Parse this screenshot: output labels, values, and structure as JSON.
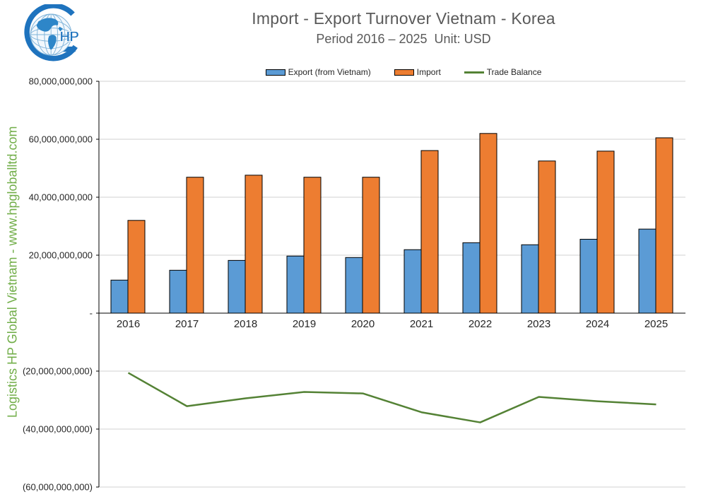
{
  "logo": {
    "monogram": "HP"
  },
  "header": {
    "title": "Import - Export Turnover Vietnam - Korea",
    "subtitle": "Period 2016 – 2025  Unit: USD"
  },
  "watermark": "Logistics HP Global Vietnam - www.hpgloballtd.com",
  "legend": {
    "items": [
      {
        "label": "Export (from Vietnam)",
        "type": "bar",
        "color": "#5B9BD5"
      },
      {
        "label": "Import",
        "type": "bar",
        "color": "#ED7D31"
      },
      {
        "label": "Trade Balance",
        "type": "line",
        "color": "#548235"
      }
    ]
  },
  "chart_data": {
    "type": "bar",
    "title": "Import - Export Turnover Vietnam - Korea",
    "subtitle": "Period 2016 – 2025  Unit: USD",
    "categories": [
      "2016",
      "2017",
      "2018",
      "2019",
      "2020",
      "2021",
      "2022",
      "2023",
      "2024",
      "2025"
    ],
    "series": [
      {
        "name": "Export (from Vietnam)",
        "type": "bar",
        "color": "#5B9BD5",
        "values": [
          11400000000,
          14800000000,
          18200000000,
          19700000000,
          19200000000,
          21900000000,
          24300000000,
          23600000000,
          25500000000,
          29000000000
        ]
      },
      {
        "name": "Import",
        "type": "bar",
        "color": "#ED7D31",
        "values": [
          32000000000,
          46900000000,
          47600000000,
          46900000000,
          46900000000,
          56100000000,
          62000000000,
          52500000000,
          55900000000,
          60500000000
        ]
      },
      {
        "name": "Trade Balance",
        "type": "line",
        "color": "#548235",
        "values": [
          -20600000000,
          -32100000000,
          -29400000000,
          -27200000000,
          -27700000000,
          -34200000000,
          -37700000000,
          -28900000000,
          -30400000000,
          -31500000000
        ]
      }
    ],
    "ylim": [
      -60000000000,
      80000000000
    ],
    "ytick_step": 20000000000,
    "ytick_labels": [
      "80,000,000,000",
      "60,000,000,000",
      "40,000,000,000",
      "20,000,000,000",
      "-",
      "(20,000,000,000)",
      "(40,000,000,000)",
      "(60,000,000,000)"
    ],
    "grid": true,
    "legend_position": "top",
    "colors": {
      "gridline": "#D2D2D2",
      "axis_line": "#000000",
      "bar_border": "#000000",
      "axis_text": "#262626",
      "title_text": "#595959",
      "watermark_green": "#70AD47",
      "logo_blue": "#1E73BE"
    }
  }
}
